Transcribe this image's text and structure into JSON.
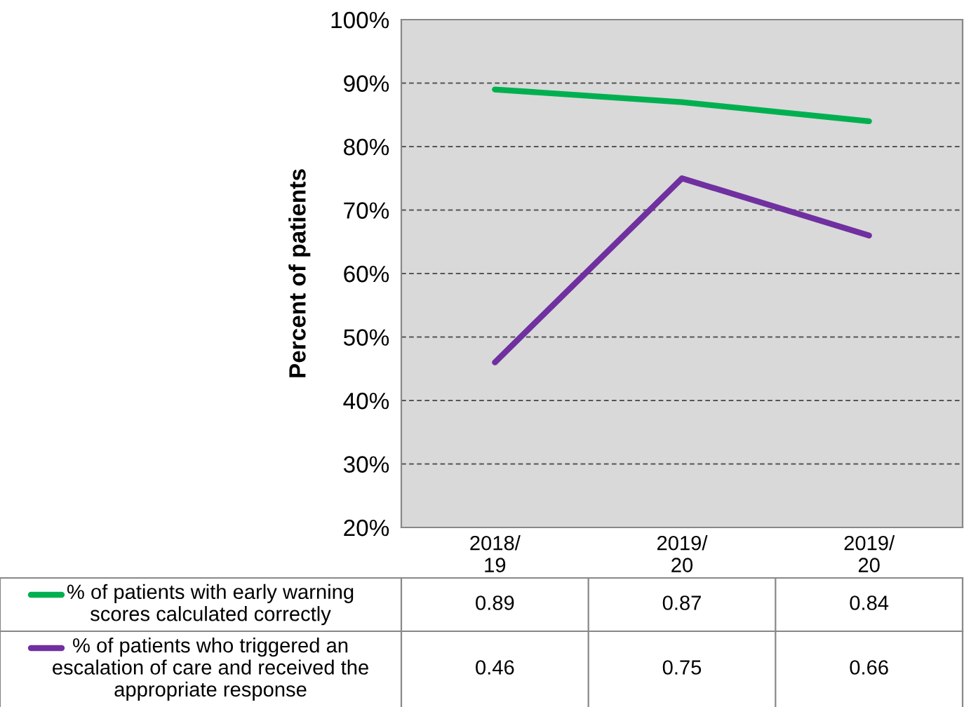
{
  "chart_data": {
    "type": "line",
    "ylabel": "Percent of patients",
    "categories": [
      "2018/\n19",
      "2019/\n20",
      "2019/\n20"
    ],
    "series": [
      {
        "name": "% of patients with early warning\nscores calculated correctly",
        "color": "#00b050",
        "values": [
          0.89,
          0.87,
          0.84
        ]
      },
      {
        "name": "% of patients who triggered an\nescalation of care and received the\nappropriate response",
        "color": "#7030a0",
        "values": [
          0.46,
          0.75,
          0.66
        ]
      }
    ],
    "ylim": [
      0.2,
      1.0
    ],
    "yticks": [
      {
        "value": 0.2,
        "label": "20%"
      },
      {
        "value": 0.3,
        "label": "30%"
      },
      {
        "value": 0.4,
        "label": "40%"
      },
      {
        "value": 0.5,
        "label": "50%"
      },
      {
        "value": 0.6,
        "label": "60%"
      },
      {
        "value": 0.7,
        "label": "70%"
      },
      {
        "value": 0.8,
        "label": "80%"
      },
      {
        "value": 0.9,
        "label": "90%"
      },
      {
        "value": 1.0,
        "label": "100%"
      }
    ],
    "grid": "y",
    "legend": "bottom",
    "data_labels": true,
    "marker": "none",
    "line_style": "solid"
  }
}
